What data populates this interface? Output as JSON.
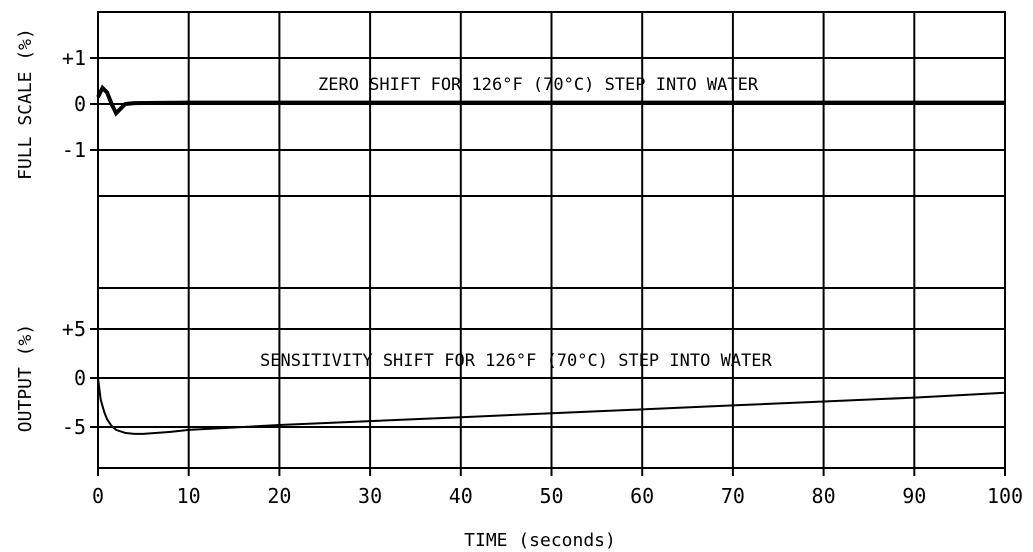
{
  "chart_data": [
    {
      "type": "line",
      "ylabel": "FULL SCALE (%)",
      "annotation": "ZERO SHIFT FOR 126°F (70°C) STEP INTO WATER",
      "y_ticks": [
        {
          "value": 1,
          "label": "+1"
        },
        {
          "value": 0,
          "label": "0"
        },
        {
          "value": -1,
          "label": "-1"
        }
      ],
      "ylim": [
        -3,
        2
      ],
      "xlim": [
        0,
        100
      ],
      "grid": true,
      "series": [
        {
          "x": [
            0,
            0.5,
            1,
            1.5,
            2,
            2.5,
            3,
            4,
            10,
            20,
            40,
            60,
            80,
            100
          ],
          "y": [
            0.15,
            0.35,
            0.25,
            0.0,
            -0.2,
            -0.1,
            0.0,
            0.02,
            0.03,
            0.03,
            0.03,
            0.03,
            0.03,
            0.03
          ]
        }
      ]
    },
    {
      "type": "line",
      "ylabel": "OUTPUT (%)",
      "annotation": "SENSITIVITY SHIFT FOR 126°F (70°C) STEP INTO WATER",
      "y_ticks": [
        {
          "value": 5,
          "label": "+5"
        },
        {
          "value": 0,
          "label": "0"
        },
        {
          "value": -5,
          "label": "-5"
        }
      ],
      "ylim": [
        -10,
        10
      ],
      "xlim": [
        0,
        100
      ],
      "grid": true,
      "series": [
        {
          "x": [
            0,
            0.3,
            0.7,
            1,
            1.5,
            2,
            3,
            4,
            5,
            8,
            10,
            20,
            30,
            40,
            50,
            60,
            70,
            80,
            90,
            100
          ],
          "y": [
            0,
            -2.2,
            -3.5,
            -4.2,
            -4.9,
            -5.3,
            -5.6,
            -5.7,
            -5.7,
            -5.5,
            -5.3,
            -4.8,
            -4.4,
            -4.0,
            -3.6,
            -3.2,
            -2.8,
            -2.4,
            -2.0,
            -1.5
          ]
        }
      ]
    }
  ],
  "x_axis": {
    "label": "TIME  (seconds)",
    "ticks": [
      "0",
      "10",
      "20",
      "30",
      "40",
      "50",
      "60",
      "70",
      "80",
      "90",
      "100"
    ]
  }
}
